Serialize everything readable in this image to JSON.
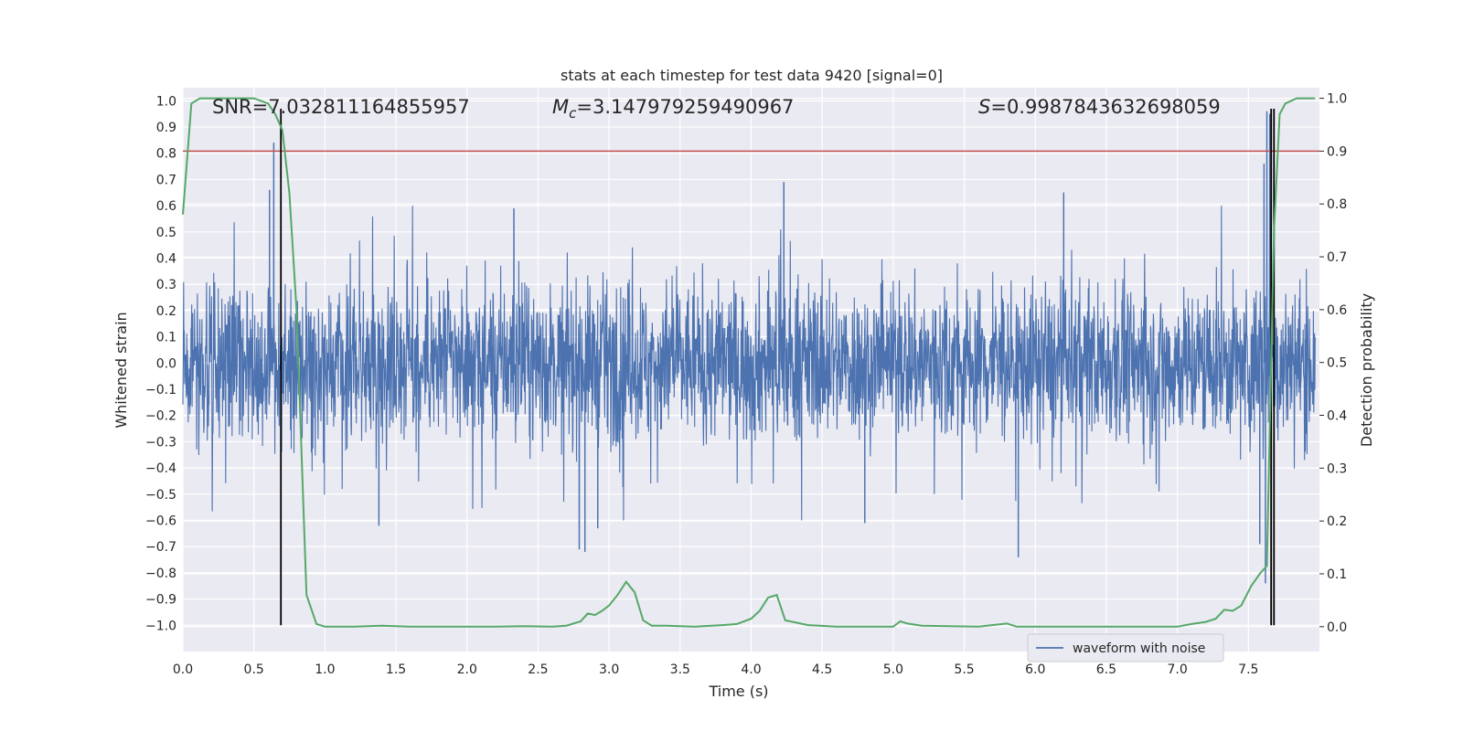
{
  "chart_data": {
    "type": "line",
    "title": "stats at each timestep for test data 9420 [signal=0]",
    "xlabel": "Time (s)",
    "ylabel": "Whitened strain",
    "y2label": "Detection probability",
    "xlim": [
      0.0,
      8.0
    ],
    "ylim": [
      -1.1,
      1.05
    ],
    "y2lim": [
      -0.047,
      1.02
    ],
    "xticks": [
      "0.0",
      "0.5",
      "1.0",
      "1.5",
      "2.0",
      "2.5",
      "3.0",
      "3.5",
      "4.0",
      "4.5",
      "5.0",
      "5.5",
      "6.0",
      "6.5",
      "7.0",
      "7.5"
    ],
    "yticks": [
      "1.0",
      "0.9",
      "0.8",
      "0.7",
      "0.6",
      "0.5",
      "0.4",
      "0.3",
      "0.2",
      "0.1",
      "0.0",
      "−0.1",
      "−0.2",
      "−0.3",
      "−0.4",
      "−0.5",
      "−0.6",
      "−0.7",
      "−0.8",
      "−0.9",
      "−1.0"
    ],
    "y2ticks": [
      "1.0",
      "0.9",
      "0.8",
      "0.7",
      "0.6",
      "0.5",
      "0.4",
      "0.3",
      "0.2",
      "0.1",
      "0.0"
    ],
    "grid": true,
    "legend": {
      "placement": "lower-right",
      "entries": [
        "waveform with noise"
      ]
    },
    "annotations": {
      "snr": "SNR=7.032811164855957",
      "mc_prefix": "M",
      "mc_sub": "c",
      "mc_value": "=3.147979259490967",
      "s_prefix": "S",
      "s_value": "=0.9987843632698059"
    },
    "threshold": 0.9,
    "vlines_x": [
      0.69,
      7.66,
      7.68
    ],
    "series": [
      {
        "name": "waveform with noise",
        "color": "#4c72b0",
        "envelope_upper_typical": 0.3,
        "envelope_lower_typical": -0.3,
        "notable_peaks": [
          {
            "x": 0.64,
            "y": 0.84
          },
          {
            "x": 0.61,
            "y": 0.66
          },
          {
            "x": 4.23,
            "y": 0.69
          },
          {
            "x": 7.61,
            "y": 0.76
          },
          {
            "x": 7.63,
            "y": 0.96
          },
          {
            "x": 7.65,
            "y": 0.95
          },
          {
            "x": 2.33,
            "y": 0.59
          },
          {
            "x": 6.2,
            "y": 0.65
          }
        ],
        "notable_troughs": [
          {
            "x": 2.79,
            "y": -0.71
          },
          {
            "x": 2.83,
            "y": -0.72
          },
          {
            "x": 2.92,
            "y": -0.63
          },
          {
            "x": 5.88,
            "y": -0.74
          },
          {
            "x": 7.62,
            "y": -0.84
          },
          {
            "x": 7.58,
            "y": -0.69
          },
          {
            "x": 1.38,
            "y": -0.62
          },
          {
            "x": 4.8,
            "y": -0.61
          }
        ]
      },
      {
        "name": "detection probability",
        "color": "#55a868",
        "x": [
          0.0,
          0.06,
          0.12,
          0.2,
          0.3,
          0.4,
          0.5,
          0.6,
          0.65,
          0.7,
          0.75,
          0.8,
          0.87,
          0.94,
          1.0,
          1.2,
          1.4,
          1.6,
          1.8,
          2.0,
          2.2,
          2.4,
          2.6,
          2.7,
          2.8,
          2.85,
          2.9,
          2.95,
          3.0,
          3.06,
          3.12,
          3.18,
          3.24,
          3.3,
          3.4,
          3.6,
          3.8,
          3.9,
          4.0,
          4.06,
          4.12,
          4.18,
          4.24,
          4.4,
          4.6,
          4.8,
          5.0,
          5.05,
          5.1,
          5.2,
          5.4,
          5.6,
          5.8,
          5.87,
          5.95,
          6.1,
          6.3,
          6.5,
          6.7,
          6.9,
          7.0,
          7.1,
          7.2,
          7.27,
          7.33,
          7.39,
          7.45,
          7.52,
          7.58,
          7.63,
          7.66,
          7.68,
          7.72,
          7.76,
          7.84,
          7.92,
          7.97
        ],
        "y": [
          0.78,
          0.99,
          1.0,
          1.0,
          1.0,
          1.0,
          1.0,
          0.99,
          0.97,
          0.94,
          0.82,
          0.6,
          0.06,
          0.005,
          0.0,
          0.0,
          0.002,
          0.0,
          0.0,
          0.0,
          0.0,
          0.001,
          0.0,
          0.002,
          0.01,
          0.025,
          0.022,
          0.03,
          0.04,
          0.06,
          0.085,
          0.065,
          0.012,
          0.002,
          0.002,
          0.0,
          0.003,
          0.005,
          0.015,
          0.03,
          0.055,
          0.06,
          0.012,
          0.003,
          0.0,
          0.0,
          0.0,
          0.01,
          0.006,
          0.002,
          0.001,
          0.0,
          0.006,
          0.0,
          0.0,
          0.0,
          0.0,
          0.0,
          0.0,
          0.0,
          0.0,
          0.005,
          0.009,
          0.015,
          0.032,
          0.03,
          0.04,
          0.077,
          0.1,
          0.115,
          0.5,
          0.75,
          0.97,
          0.99,
          1.0,
          1.0,
          1.0
        ]
      }
    ]
  }
}
